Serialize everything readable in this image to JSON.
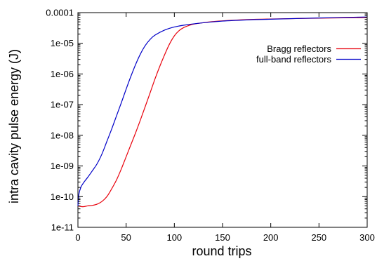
{
  "chart_data": {
    "type": "line",
    "title": "",
    "xlabel": "round trips",
    "ylabel": "intra cavity pulse energy (J)",
    "xlim": [
      0,
      300
    ],
    "ylim": [
      1e-11,
      0.0001
    ],
    "y_scale": "log",
    "grid": false,
    "legend_position": "top-right",
    "x_ticks": [
      0,
      50,
      100,
      150,
      200,
      250,
      300
    ],
    "x_tick_labels": [
      "0",
      "50",
      "100",
      "150",
      "200",
      "250",
      "300"
    ],
    "y_ticks": [
      1e-11,
      1e-10,
      1e-09,
      1e-08,
      1e-07,
      1e-06,
      1e-05,
      0.0001
    ],
    "y_tick_labels": [
      "1e-11",
      "1e-10",
      "1e-09",
      "1e-08",
      "1e-07",
      "1e-06",
      "1e-05",
      "0.0001"
    ],
    "series": [
      {
        "name": "Bragg reflectors",
        "color": "#e8000b",
        "x": [
          0,
          5,
          10,
          15,
          20,
          25,
          30,
          35,
          40,
          45,
          50,
          55,
          60,
          65,
          70,
          75,
          80,
          85,
          90,
          95,
          100,
          105,
          110,
          115,
          120,
          130,
          140,
          150,
          175,
          200,
          250,
          300
        ],
        "y": [
          5e-11,
          4.7e-11,
          5e-11,
          5.2e-11,
          5.7e-11,
          7e-11,
          1e-10,
          1.8e-10,
          3.5e-10,
          8e-10,
          2e-09,
          5e-09,
          1.25e-08,
          3.3e-08,
          9e-08,
          2.5e-07,
          7e-07,
          1.8e-06,
          4.3e-06,
          9.5e-06,
          1.75e-05,
          2.6e-05,
          3.3e-05,
          3.8e-05,
          4.2e-05,
          4.7e-05,
          5.1e-05,
          5.4e-05,
          5.9e-05,
          6.2e-05,
          6.6e-05,
          6.9e-05
        ]
      },
      {
        "name": "full-band reflectors",
        "color": "#0000c8",
        "x": [
          0,
          1,
          3,
          5,
          8,
          10,
          15,
          20,
          25,
          30,
          35,
          40,
          45,
          50,
          55,
          60,
          65,
          70,
          75,
          80,
          90,
          100,
          110,
          125,
          150,
          175,
          200,
          250,
          300
        ],
        "y": [
          5e-11,
          1.2e-10,
          2e-10,
          2.6e-10,
          3.5e-10,
          4.2e-10,
          7e-10,
          1.2e-09,
          2.5e-09,
          6.3e-09,
          1.6e-08,
          4.3e-08,
          1.15e-07,
          3.2e-07,
          8.5e-07,
          2.1e-06,
          4.6e-06,
          8.6e-06,
          1.35e-05,
          1.85e-05,
          2.7e-05,
          3.4e-05,
          3.9e-05,
          4.5e-05,
          5.3e-05,
          5.8e-05,
          6.1e-05,
          6.7e-05,
          7.2e-05
        ]
      }
    ]
  }
}
